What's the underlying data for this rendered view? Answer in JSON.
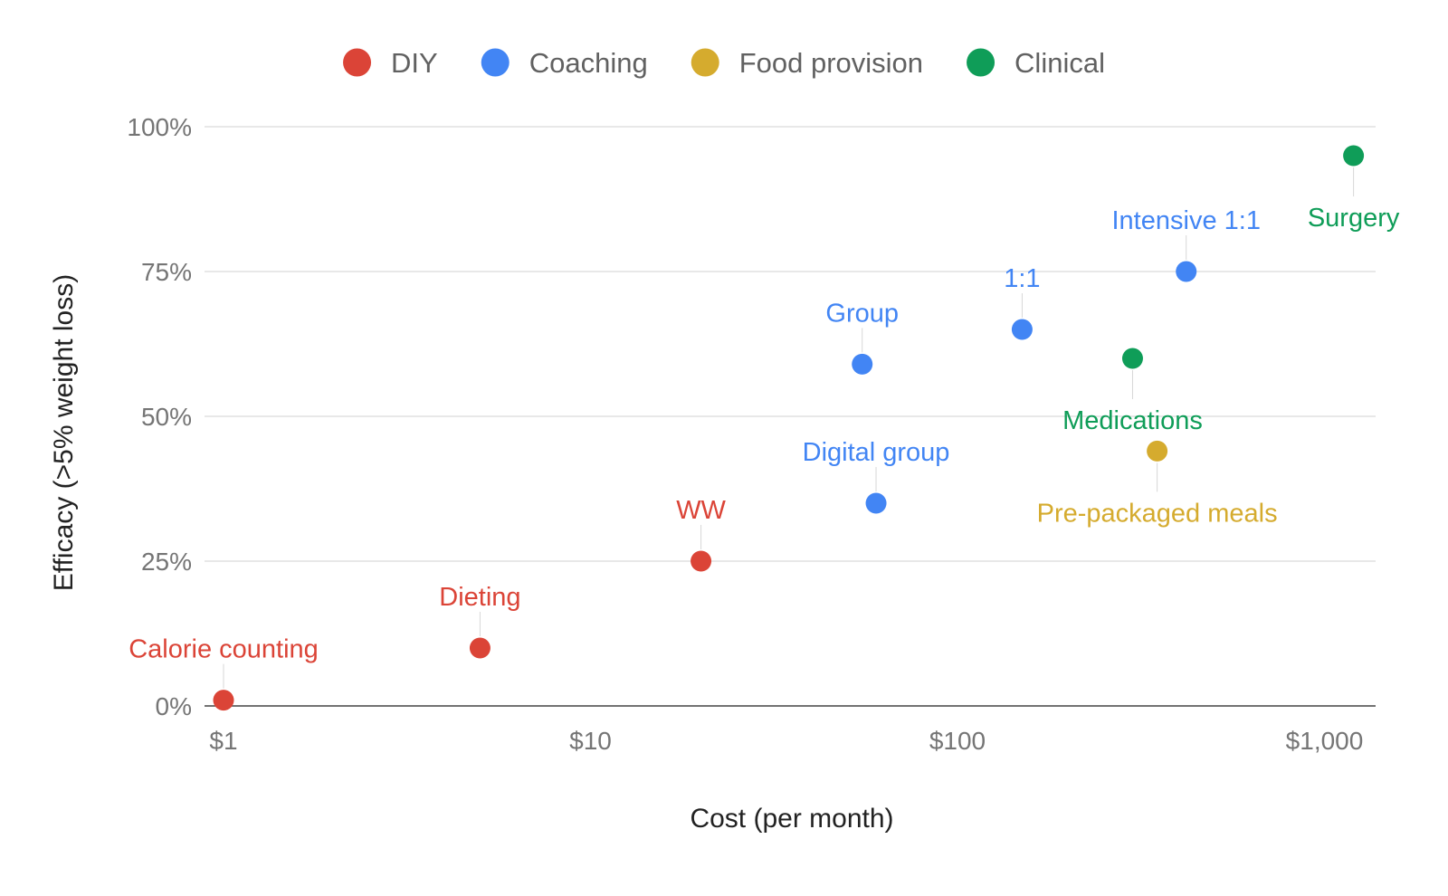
{
  "chart_data": {
    "type": "scatter",
    "xlabel": "Cost (per month)",
    "ylabel": "Efficacy (>5% weight loss)",
    "x_scale": "log",
    "xlim": [
      1,
      1300
    ],
    "ylim": [
      0,
      100
    ],
    "x_ticks": [
      "$1",
      "$10",
      "$100",
      "$1,000"
    ],
    "y_ticks": [
      "0%",
      "25%",
      "50%",
      "75%",
      "100%"
    ],
    "grid": true,
    "legend_position": "top",
    "series": [
      {
        "name": "DIY",
        "color": "#db4437",
        "points": [
          {
            "label": "Calorie counting",
            "x": 1,
            "y": 1,
            "label_pos": "above"
          },
          {
            "label": "Dieting",
            "x": 5,
            "y": 10,
            "label_pos": "above"
          },
          {
            "label": "WW",
            "x": 20,
            "y": 25,
            "label_pos": "above"
          }
        ]
      },
      {
        "name": "Coaching",
        "color": "#4285f4",
        "points": [
          {
            "label": "Digital group",
            "x": 60,
            "y": 35,
            "label_pos": "above"
          },
          {
            "label": "Group",
            "x": 55,
            "y": 59,
            "label_pos": "above"
          },
          {
            "label": "1:1",
            "x": 150,
            "y": 65,
            "label_pos": "above"
          },
          {
            "label": "Intensive 1:1",
            "x": 420,
            "y": 75,
            "label_pos": "above"
          }
        ]
      },
      {
        "name": "Food provision",
        "color": "#d5ab2e",
        "points": [
          {
            "label": "Pre-packaged meals",
            "x": 350,
            "y": 44,
            "label_pos": "below"
          }
        ]
      },
      {
        "name": "Clinical",
        "color": "#0f9d58",
        "points": [
          {
            "label": "Medications",
            "x": 300,
            "y": 60,
            "label_pos": "below"
          },
          {
            "label": "Surgery",
            "x": 1200,
            "y": 95,
            "label_pos": "below"
          }
        ]
      }
    ]
  }
}
